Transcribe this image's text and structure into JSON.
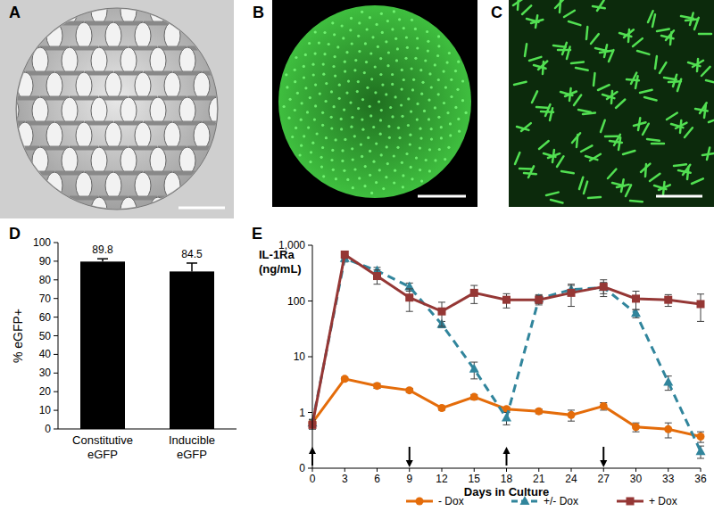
{
  "panel_labels": [
    "A",
    "B",
    "C",
    "D",
    "E"
  ],
  "chart_data": [
    {
      "type": "bar",
      "categories": [
        "Constitutive eGFP",
        "Inducible eGFP"
      ],
      "values": [
        89.8,
        84.5
      ],
      "errors": [
        1.5,
        4.5
      ],
      "color": "#000000",
      "ylabel": "% eGFP+",
      "ylim": [
        0,
        100
      ],
      "yticks": [
        0,
        10,
        20,
        30,
        40,
        50,
        60,
        70,
        80,
        90,
        100
      ],
      "data_labels": true
    },
    {
      "type": "line",
      "x": [
        0,
        3,
        6,
        9,
        12,
        15,
        18,
        21,
        24,
        27,
        30,
        33,
        36
      ],
      "xlim": [
        0,
        36
      ],
      "xticks": [
        0,
        3,
        6,
        9,
        12,
        15,
        18,
        21,
        24,
        27,
        30,
        33,
        36
      ],
      "xlabel": "Days in Culture",
      "ylabel": "IL-1Ra (ng/mL)",
      "log": "y",
      "ylim": [
        0.1,
        1000
      ],
      "yticks": [
        {
          "value": 0.1,
          "label": "0"
        },
        1,
        10,
        100,
        {
          "value": 1000,
          "label": "1,000"
        }
      ],
      "legend": "bottom",
      "series": [
        {
          "name": "- Dox",
          "color": "#e46c0a",
          "marker": "circle",
          "line_style": "solid",
          "values": [
            0.65,
            4,
            3,
            2.5,
            1.2,
            1.9,
            1.15,
            1.05,
            0.9,
            1.3,
            0.55,
            0.5,
            0.37
          ],
          "errors": [
            0.1,
            0.3,
            0.3,
            0.2,
            0.1,
            0.2,
            0.1,
            0.1,
            0.2,
            0.2,
            0.1,
            0.15,
            0.08
          ]
        },
        {
          "name": "+/- Dox",
          "color": "#31859c",
          "marker": "triangle",
          "line_style": "dashed",
          "values": [
            0.65,
            580,
            350,
            180,
            38,
            6,
            0.8,
            110,
            160,
            175,
            60,
            3.5,
            0.2
          ],
          "errors": [
            0.1,
            80,
            50,
            30,
            5,
            2,
            0.2,
            20,
            30,
            40,
            10,
            1,
            0.05
          ]
        },
        {
          "name": "+ Dox",
          "color": "#953735",
          "marker": "square",
          "line_style": "solid",
          "values": [
            0.6,
            680,
            280,
            115,
            65,
            140,
            105,
            105,
            140,
            180,
            110,
            105,
            88
          ],
          "errors": [
            0.1,
            100,
            80,
            50,
            30,
            50,
            30,
            20,
            60,
            60,
            40,
            25,
            45
          ]
        }
      ],
      "arrows": [
        {
          "x": 0,
          "direction": "up"
        },
        {
          "x": 9,
          "direction": "down"
        },
        {
          "x": 18,
          "direction": "up"
        },
        {
          "x": 27,
          "direction": "down"
        }
      ]
    }
  ]
}
